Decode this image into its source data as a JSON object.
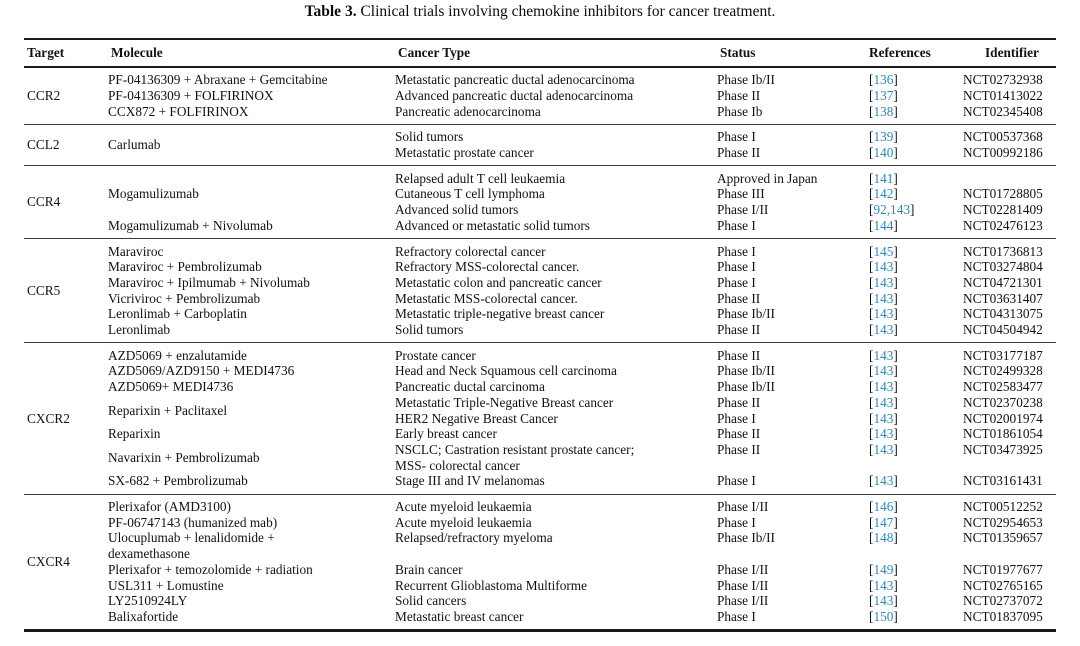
{
  "page": {
    "title_label": "Table 3.",
    "title_text": " Clinical trials involving chemokine inhibitors for cancer treatment."
  },
  "colors": {
    "reference_link": "#2d87be",
    "rule": "#1b1b1b",
    "text": "#111111"
  },
  "table": {
    "headers": [
      "Target",
      "Molecule",
      "Cancer Type",
      "Status",
      "References",
      "Identifier"
    ],
    "sections": [
      {
        "target": "CCR2",
        "groups": [
          {
            "molecule": "PF-04136309 + Abraxane + Gemcitabine",
            "entries": [
              {
                "cancer": "Metastatic pancreatic ductal adenocarcinoma",
                "status": "Phase Ib/II",
                "refs": "136",
                "id": "NCT02732938"
              }
            ]
          },
          {
            "molecule": "PF-04136309 + FOLFIRINOX",
            "entries": [
              {
                "cancer": "Advanced pancreatic ductal adenocarcinoma",
                "status": "Phase II",
                "refs": "137",
                "id": "NCT01413022"
              }
            ]
          },
          {
            "molecule": "CCX872 + FOLFIRINOX",
            "entries": [
              {
                "cancer": "Pancreatic adenocarcinoma",
                "status": "Phase Ib",
                "refs": "138",
                "id": "NCT02345408"
              }
            ]
          }
        ]
      },
      {
        "target": "CCL2",
        "groups": [
          {
            "molecule": "Carlumab",
            "entries": [
              {
                "cancer": "Solid tumors",
                "status": "Phase I",
                "refs": "139",
                "id": "NCT00537368"
              },
              {
                "cancer": "Metastatic prostate cancer",
                "status": "Phase II",
                "refs": "140",
                "id": "NCT00992186"
              }
            ]
          }
        ]
      },
      {
        "target": "CCR4",
        "groups": [
          {
            "molecule": "Mogamulizumab",
            "entries": [
              {
                "cancer": "Relapsed adult T cell leukaemia",
                "status": "Approved in Japan",
                "refs": "141",
                "id": ""
              },
              {
                "cancer": "Cutaneous T cell lymphoma",
                "status": "Phase III",
                "refs": "142",
                "id": "NCT01728805"
              },
              {
                "cancer": "Advanced solid tumors",
                "status": "Phase I/II",
                "refs": "92,143",
                "id": "NCT02281409"
              }
            ]
          },
          {
            "molecule": "Mogamulizumab + Nivolumab",
            "entries": [
              {
                "cancer": "Advanced or metastatic solid tumors",
                "status": "Phase I",
                "refs": "144",
                "id": "NCT02476123"
              }
            ]
          }
        ]
      },
      {
        "target": "CCR5",
        "groups": [
          {
            "molecule": "Maraviroc",
            "entries": [
              {
                "cancer": "Refractory colorectal cancer",
                "status": "Phase I",
                "refs": "145",
                "id": "NCT01736813"
              }
            ]
          },
          {
            "molecule": "Maraviroc + Pembrolizumab",
            "entries": [
              {
                "cancer": "Refractory MSS-colorectal cancer.",
                "status": "Phase I",
                "refs": "143",
                "id": "NCT03274804"
              }
            ]
          },
          {
            "molecule": "Maraviroc + Ipilmumab + Nivolumab",
            "entries": [
              {
                "cancer": "Metastatic colon and pancreatic cancer",
                "status": "Phase I",
                "refs": "143",
                "id": "NCT04721301"
              }
            ]
          },
          {
            "molecule": "Vicriviroc + Pembrolizumab",
            "entries": [
              {
                "cancer": "Metastatic MSS-colorectal cancer.",
                "status": "Phase II",
                "refs": "143",
                "id": "NCT03631407"
              }
            ]
          },
          {
            "molecule": "Leronlimab + Carboplatin",
            "entries": [
              {
                "cancer": "Metastatic triple-negative breast cancer",
                "status": "Phase Ib/II",
                "refs": "143",
                "id": "NCT04313075"
              }
            ]
          },
          {
            "molecule": "Leronlimab",
            "entries": [
              {
                "cancer": "Solid tumors",
                "status": "Phase II",
                "refs": "143",
                "id": "NCT04504942"
              }
            ]
          }
        ]
      },
      {
        "target": "CXCR2",
        "groups": [
          {
            "molecule": "AZD5069 + enzalutamide",
            "entries": [
              {
                "cancer": "Prostate cancer",
                "status": "Phase II",
                "refs": "143",
                "id": "NCT03177187"
              }
            ]
          },
          {
            "molecule": "AZD5069/AZD9150 + MEDI4736",
            "entries": [
              {
                "cancer": "Head and Neck Squamous cell carcinoma",
                "status": "Phase Ib/II",
                "refs": "143",
                "id": "NCT02499328"
              }
            ]
          },
          {
            "molecule": "AZD5069+ MEDI4736",
            "entries": [
              {
                "cancer": "Pancreatic ductal carcinoma",
                "status": "Phase Ib/II",
                "refs": "143",
                "id": "NCT02583477"
              }
            ]
          },
          {
            "molecule": "Reparixin + Paclitaxel",
            "entries": [
              {
                "cancer": "Metastatic Triple-Negative Breast cancer",
                "status": "Phase II",
                "refs": "143",
                "id": "NCT02370238"
              },
              {
                "cancer": "HER2 Negative Breast Cancer",
                "status": "Phase I",
                "refs": "143",
                "id": "NCT02001974"
              }
            ]
          },
          {
            "molecule": "Reparixin",
            "entries": [
              {
                "cancer": "Early breast cancer",
                "status": "Phase II",
                "refs": "143",
                "id": "NCT01861054"
              }
            ]
          },
          {
            "molecule": "Navarixin + Pembrolizumab",
            "entries": [
              {
                "cancer": "NSCLC; Castration resistant prostate cancer;\nMSS- colorectal cancer",
                "status": "Phase II",
                "refs": "143",
                "id": "NCT03473925"
              }
            ]
          },
          {
            "molecule": "SX-682 + Pembrolizumab",
            "entries": [
              {
                "cancer": "Stage III and IV melanomas",
                "status": "Phase I",
                "refs": "143",
                "id": "NCT03161431"
              }
            ]
          }
        ]
      },
      {
        "target": "CXCR4",
        "groups": [
          {
            "molecule": "Plerixafor (AMD3100)",
            "entries": [
              {
                "cancer": "Acute myeloid leukaemia",
                "status": "Phase I/II",
                "refs": "146",
                "id": "NCT00512252"
              }
            ]
          },
          {
            "molecule": "PF-06747143 (humanized mab)",
            "entries": [
              {
                "cancer": "Acute myeloid leukaemia",
                "status": "Phase I",
                "refs": "147",
                "id": "NCT02954653"
              }
            ]
          },
          {
            "molecule": "Ulocuplumab + lenalidomide +\ndexamethasone",
            "entries": [
              {
                "cancer": "Relapsed/refractory myeloma",
                "status": "Phase Ib/II",
                "refs": "148",
                "id": "NCT01359657"
              }
            ]
          },
          {
            "molecule": "Plerixafor + temozolomide + radiation",
            "entries": [
              {
                "cancer": "Brain cancer",
                "status": "Phase I/II",
                "refs": "149",
                "id": "NCT01977677"
              }
            ]
          },
          {
            "molecule": "USL311 + Lomustine",
            "entries": [
              {
                "cancer": "Recurrent Glioblastoma Multiforme",
                "status": "Phase I/II",
                "refs": "143",
                "id": "NCT02765165"
              }
            ]
          },
          {
            "molecule": "LY2510924LY",
            "entries": [
              {
                "cancer": "Solid cancers",
                "status": "Phase I/II",
                "refs": "143",
                "id": "NCT02737072"
              }
            ]
          },
          {
            "molecule": "Balixafortide",
            "entries": [
              {
                "cancer": "Metastatic breast cancer",
                "status": "Phase I",
                "refs": "150",
                "id": "NCT01837095"
              }
            ]
          }
        ]
      }
    ]
  }
}
